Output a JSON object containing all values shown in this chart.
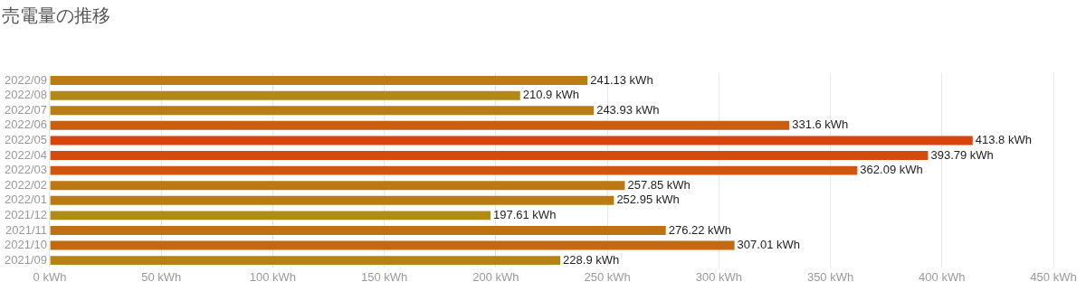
{
  "chart_data": {
    "type": "bar",
    "orientation": "horizontal",
    "title": "売電量の推移",
    "categories": [
      "2022/09",
      "2022/08",
      "2022/07",
      "2022/06",
      "2022/05",
      "2022/04",
      "2022/03",
      "2022/02",
      "2022/01",
      "2021/12",
      "2021/11",
      "2021/10",
      "2021/09"
    ],
    "values": [
      241.13,
      210.9,
      243.93,
      331.6,
      413.8,
      393.79,
      362.09,
      257.85,
      252.95,
      197.61,
      276.22,
      307.01,
      228.9
    ],
    "color": "#8ace1e",
    "colors": [
      "#b87e14",
      "#b28816",
      "#b97d14",
      "#c95f11",
      "#d9440d",
      "#d54b0e",
      "#cf5510",
      "#bb7814",
      "#ba7a14",
      "#b08c16",
      "#bf7213",
      "#c56812",
      "#b68215"
    ],
    "value_labels": [
      "241.13 kWh",
      "210.9 kWh",
      "243.93 kWh",
      "331.6 kWh",
      "413.8 kWh",
      "393.79 kWh",
      "362.09 kWh",
      "257.85 kWh",
      "252.95 kWh",
      "197.61 kWh",
      "276.22 kWh",
      "307.01 kWh",
      "228.9 kWh"
    ],
    "xlim": [
      0,
      450
    ],
    "xticks": [
      {
        "value": 0,
        "label": "0 kWh"
      },
      {
        "value": 50,
        "label": "50 kWh"
      },
      {
        "value": 100,
        "label": "100 kWh"
      },
      {
        "value": 150,
        "label": "150 kWh"
      },
      {
        "value": 200,
        "label": "200 kWh"
      },
      {
        "value": 250,
        "label": "250 kWh"
      },
      {
        "value": 300,
        "label": "300 kWh"
      },
      {
        "value": 350,
        "label": "350 kWh"
      },
      {
        "value": 400,
        "label": "400 kWh"
      },
      {
        "value": 450,
        "label": "450 kWh"
      }
    ],
    "grid": "x",
    "legend": false
  }
}
